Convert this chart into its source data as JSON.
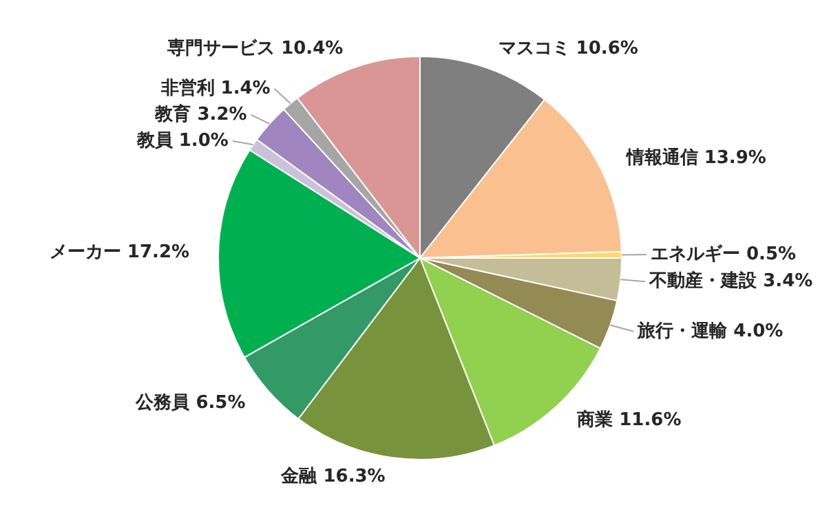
{
  "chart_data": {
    "type": "pie",
    "legend": false,
    "categories": [
      "マスコミ",
      "情報通信",
      "エネルギー",
      "不動産・建設",
      "旅行・運輸",
      "商業",
      "金融",
      "公務員",
      "メーカー",
      "教員",
      "教育",
      "非営利",
      "専門サービス"
    ],
    "values": [
      10.6,
      13.9,
      0.5,
      3.4,
      4.0,
      11.6,
      16.3,
      6.5,
      17.2,
      1.0,
      3.2,
      1.4,
      10.4
    ],
    "value_labels": [
      "10.6%",
      "13.9%",
      "0.5%",
      "3.4%",
      "4.0%",
      "11.6%",
      "16.3%",
      "6.5%",
      "17.2%",
      "1.0%",
      "3.2%",
      "1.4%",
      "10.4%"
    ],
    "colors": [
      "#7f7f7f",
      "#fac090",
      "#ffd966",
      "#c4bd97",
      "#948a54",
      "#92d050",
      "#77933c",
      "#339966",
      "#00b050",
      "#ccc1da",
      "#a085c0",
      "#a6a6a6",
      "#d99694"
    ]
  }
}
